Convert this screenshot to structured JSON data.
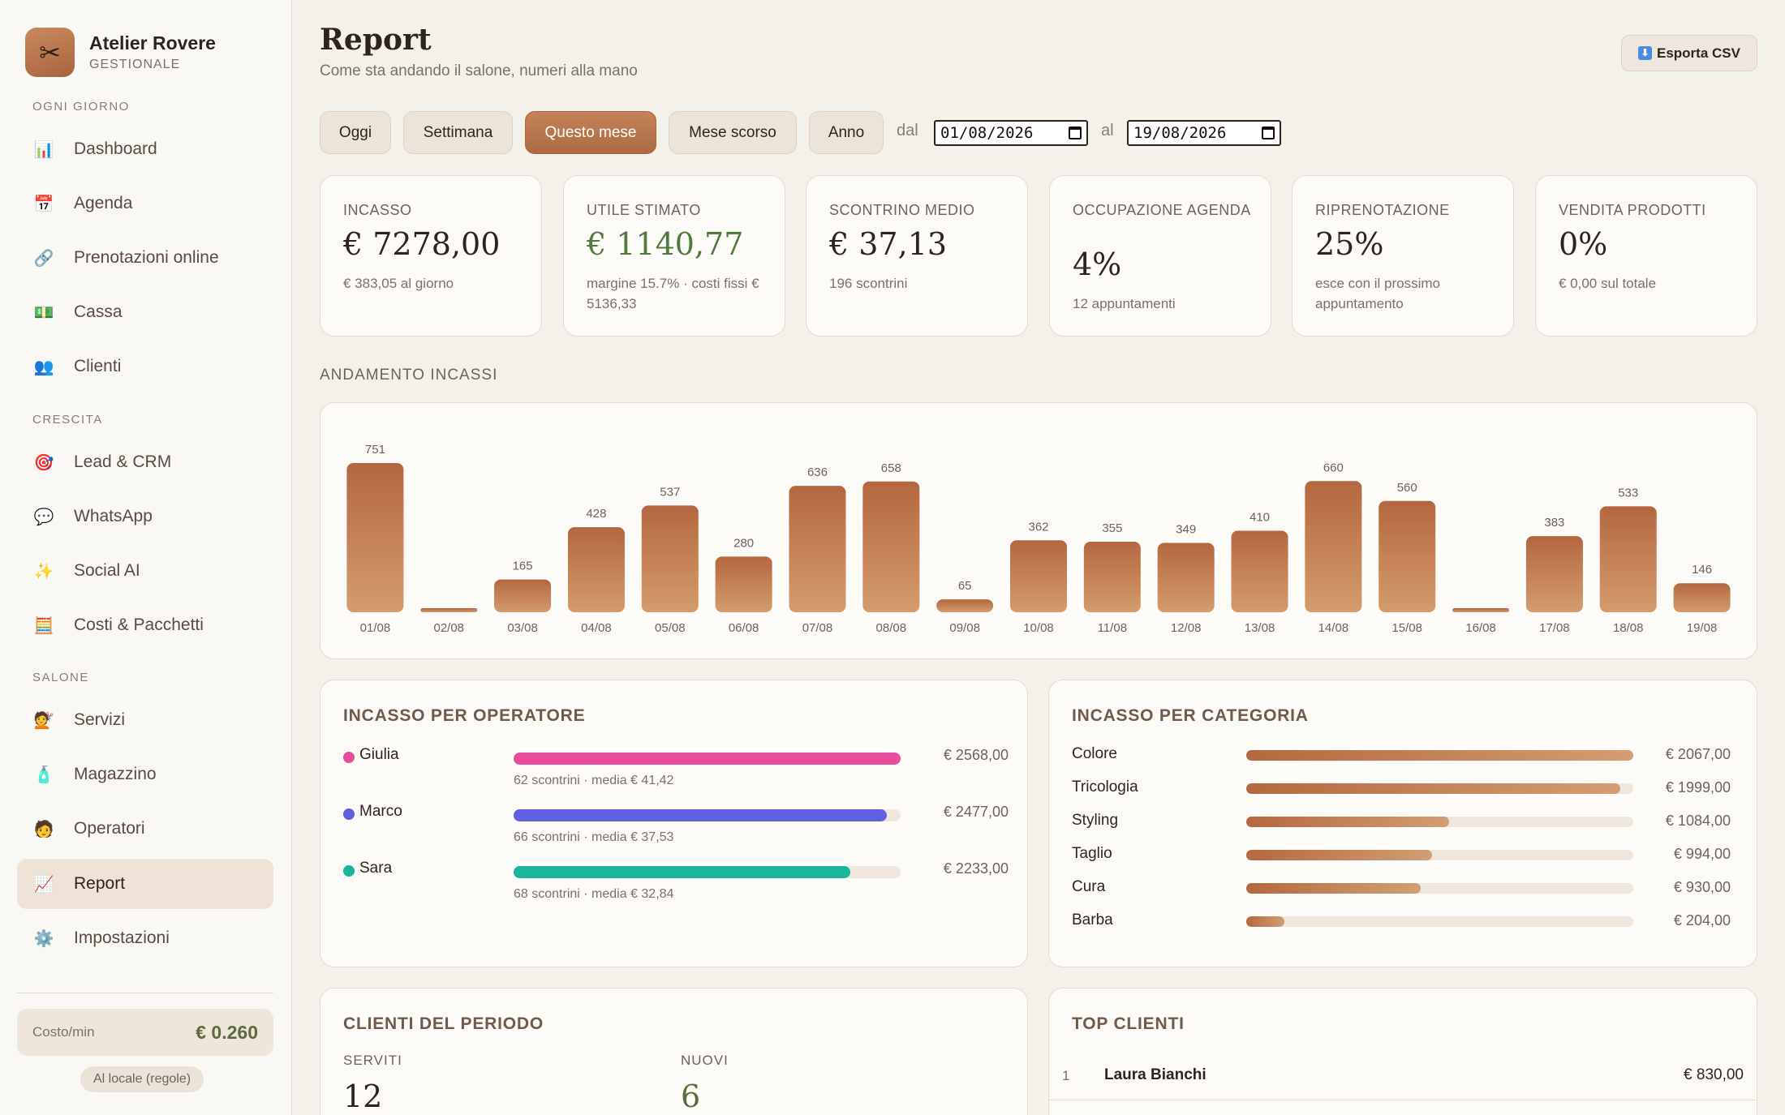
{
  "brand": {
    "name": "Atelier Rovere",
    "subtitle": "GESTIONALE",
    "logo_icon": "scissors-icon"
  },
  "nav": {
    "sections": [
      "OGNI GIORNO",
      "CRESCITA",
      "SALONE"
    ],
    "items": [
      {
        "label": "Dashboard",
        "icon": "bar-chart-icon",
        "glyph": "📊"
      },
      {
        "label": "Agenda",
        "icon": "calendar-icon",
        "glyph": "📅"
      },
      {
        "label": "Prenotazioni online",
        "icon": "link-icon",
        "glyph": "🔗"
      },
      {
        "label": "Cassa",
        "icon": "cash-icon",
        "glyph": "💵"
      },
      {
        "label": "Clienti",
        "icon": "people-icon",
        "glyph": "👥"
      },
      {
        "label": "Lead & CRM",
        "icon": "target-icon",
        "glyph": "🎯"
      },
      {
        "label": "WhatsApp",
        "icon": "chat-bubble-icon",
        "glyph": "💬"
      },
      {
        "label": "Social AI",
        "icon": "sparkles-icon",
        "glyph": "✨"
      },
      {
        "label": "Costi & Pacchetti",
        "icon": "abacus-icon",
        "glyph": "🧮"
      },
      {
        "label": "Servizi",
        "icon": "hairdresser-icon",
        "glyph": "💇"
      },
      {
        "label": "Magazzino",
        "icon": "bottle-icon",
        "glyph": "🧴"
      },
      {
        "label": "Operatori",
        "icon": "worker-icon",
        "glyph": "🧑"
      },
      {
        "label": "Report",
        "icon": "trend-chart-icon",
        "glyph": "📈"
      },
      {
        "label": "Impostazioni",
        "icon": "gear-icon",
        "glyph": "⚙️"
      }
    ],
    "active": "Report"
  },
  "cost": {
    "label": "Costo/min",
    "value": "€ 0.260",
    "badge": "Al locale (regole)"
  },
  "header": {
    "title": "Report",
    "subtitle": "Come sta andando il salone, numeri alla mano",
    "export_label": "Esporta CSV",
    "export_icon": "download-icon"
  },
  "filters": {
    "buttons": [
      "Oggi",
      "Settimana",
      "Questo mese",
      "Mese scorso",
      "Anno"
    ],
    "active": "Questo mese",
    "from_label": "dal",
    "from_value": "01/08/2026",
    "to_label": "al",
    "to_value": "19/08/2026"
  },
  "kpis": [
    {
      "label": "INCASSO",
      "value": "€ 7278,00",
      "sub": "€ 383,05 al giorno"
    },
    {
      "label": "UTILE STIMATO",
      "value": "€ 1140,77",
      "sub": "margine 15.7% · costi fissi € 5136,33",
      "value_color": "#4f7a3c"
    },
    {
      "label": "SCONTRINO MEDIO",
      "value": "€ 37,13",
      "sub": "196 scontrini"
    },
    {
      "label": "OCCUPAZIONE AGENDA",
      "value": "4%",
      "sub": "12 appuntamenti"
    },
    {
      "label": "RIPRENOTAZIONE",
      "value": "25%",
      "sub": "esce con il prossimo appuntamento"
    },
    {
      "label": "VENDITA PRODOTTI",
      "value": "0%",
      "sub": "€ 0,00 sul totale"
    }
  ],
  "trend": {
    "title": "ANDAMENTO INCASSI"
  },
  "chart_data": {
    "type": "bar",
    "title": "ANDAMENTO INCASSI",
    "categories": [
      "01/08",
      "02/08",
      "03/08",
      "04/08",
      "05/08",
      "06/08",
      "07/08",
      "08/08",
      "09/08",
      "10/08",
      "11/08",
      "12/08",
      "13/08",
      "14/08",
      "15/08",
      "16/08",
      "17/08",
      "18/08",
      "19/08"
    ],
    "values": [
      751,
      0,
      165,
      428,
      537,
      280,
      636,
      658,
      65,
      362,
      355,
      349,
      410,
      660,
      560,
      0,
      383,
      533,
      146
    ],
    "data_labels": [
      "751",
      "",
      "165",
      "428",
      "537",
      "280",
      "636",
      "658",
      "65",
      "362",
      "355",
      "349",
      "410",
      "660",
      "560",
      "",
      "383",
      "533",
      "146"
    ],
    "grid": false,
    "legend": "none"
  },
  "operators": {
    "title": "INCASSO PER OPERATORE",
    "items": [
      {
        "name": "Giulia",
        "value": "€ 2568,00",
        "share": 1.0,
        "sub": "62 scontrini · media € 41,42",
        "color": "#e84d9b"
      },
      {
        "name": "Marco",
        "value": "€ 2477,00",
        "share": 0.964,
        "sub": "66 scontrini · media € 37,53",
        "color": "#6060e0"
      },
      {
        "name": "Sara",
        "value": "€ 2233,00",
        "share": 0.87,
        "sub": "68 scontrini · media € 32,84",
        "color": "#1bb59b"
      }
    ]
  },
  "categories": {
    "title": "INCASSO PER CATEGORIA",
    "items": [
      {
        "name": "Colore",
        "value": "€ 2067,00",
        "share": 1.0
      },
      {
        "name": "Tricologia",
        "value": "€ 1999,00",
        "share": 0.967
      },
      {
        "name": "Styling",
        "value": "€ 1084,00",
        "share": 0.524
      },
      {
        "name": "Taglio",
        "value": "€ 994,00",
        "share": 0.481
      },
      {
        "name": "Cura",
        "value": "€ 930,00",
        "share": 0.45
      },
      {
        "name": "Barba",
        "value": "€ 204,00",
        "share": 0.099
      }
    ]
  },
  "clients_period": {
    "title": "CLIENTI DEL PERIODO",
    "served_label": "SERVITI",
    "served_value": "12",
    "new_label": "NUOVI",
    "new_value": "6"
  },
  "top_clients": {
    "title": "TOP CLIENTI",
    "rows": [
      {
        "rank": "1",
        "name": "Laura Bianchi",
        "value": "€ 830,00"
      }
    ]
  },
  "colors": {
    "accent": "#b5683f",
    "background": "#f4f0ea",
    "positive": "#4f7a3c",
    "new_clients": "#5b6b3d"
  }
}
